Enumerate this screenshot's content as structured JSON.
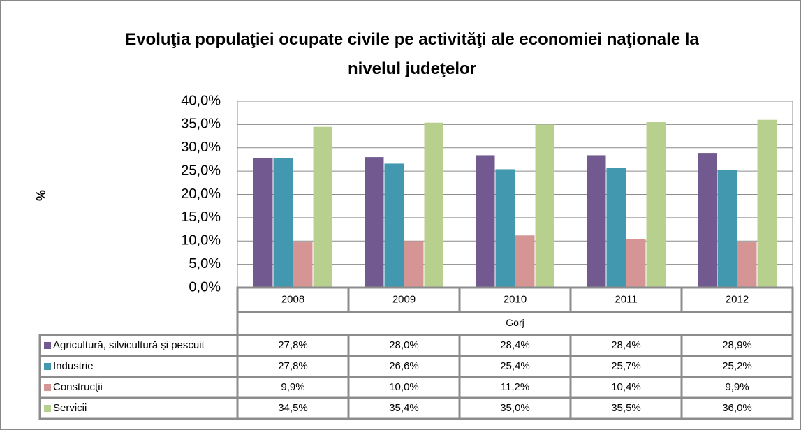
{
  "chart_data": {
    "type": "bar",
    "title": "Evoluţia populaţiei ocupate civile pe activităţi ale economiei naţionale la nivelul judeţelor",
    "y_label": "%",
    "group": "Gorj",
    "categories": [
      "2008",
      "2009",
      "2010",
      "2011",
      "2012"
    ],
    "series": [
      {
        "name": "Agricultură, silvicultură şi pescuit",
        "color": "#72598f",
        "values": [
          27.8,
          28.0,
          28.4,
          28.4,
          28.9
        ],
        "value_labels": [
          "27,8%",
          "28,0%",
          "28,4%",
          "28,4%",
          "28,9%"
        ]
      },
      {
        "name": "Industrie",
        "color": "#4198af",
        "values": [
          27.8,
          26.6,
          25.4,
          25.7,
          25.2
        ],
        "value_labels": [
          "27,8%",
          "26,6%",
          "25,4%",
          "25,7%",
          "25,2%"
        ]
      },
      {
        "name": "Construcţii",
        "color": "#d59594",
        "values": [
          9.9,
          10.0,
          11.2,
          10.4,
          9.9
        ],
        "value_labels": [
          "9,9%",
          "10,0%",
          "11,2%",
          "10,4%",
          "9,9%"
        ]
      },
      {
        "name": "Servicii",
        "color": "#b8d08e",
        "values": [
          34.5,
          35.4,
          35.0,
          35.5,
          36.0
        ],
        "value_labels": [
          "34,5%",
          "35,4%",
          "35,0%",
          "35,5%",
          "36,0%"
        ]
      }
    ],
    "ylim": [
      0,
      40
    ],
    "yticks": [
      {
        "value": 0,
        "label": "0,0%"
      },
      {
        "value": 5,
        "label": "5,0%"
      },
      {
        "value": 10,
        "label": "10,0%"
      },
      {
        "value": 15,
        "label": "15,0%"
      },
      {
        "value": 20,
        "label": "20,0%"
      },
      {
        "value": 25,
        "label": "25,0%"
      },
      {
        "value": 30,
        "label": "30,0%"
      },
      {
        "value": 35,
        "label": "35,0%"
      },
      {
        "value": 40,
        "label": "40,0%"
      }
    ],
    "grid": true
  }
}
